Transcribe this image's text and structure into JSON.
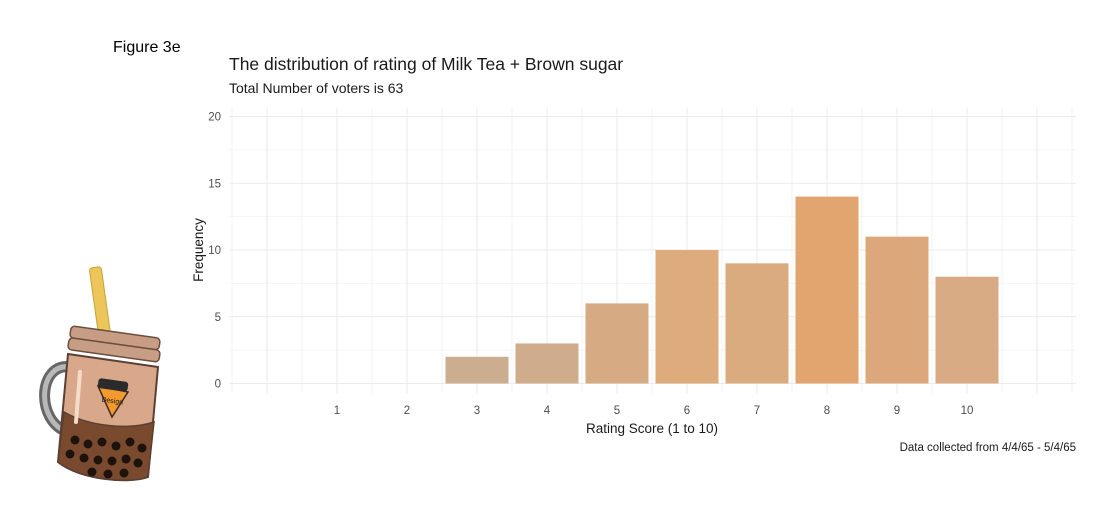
{
  "figure_label": "Figure 3e",
  "colors": {
    "grid": "#ebebeb",
    "axis_text": "#4d4d4d",
    "bar_low": "#ccad8f",
    "bar_high": "#e3a56f"
  },
  "mascot": {
    "icon": "bubble-tea-jar-icon",
    "badge_text": "Design"
  },
  "chart_data": {
    "type": "bar",
    "title": "The distribution of rating of Milk Tea + Brown sugar",
    "subtitle": "Total Number of voters is 63",
    "caption": "Data collected from 4/4/65 - 5/4/65",
    "xlabel": "Rating Score (1 to 10)",
    "ylabel": "Frequency",
    "categories": [
      "1",
      "2",
      "3",
      "4",
      "5",
      "6",
      "7",
      "8",
      "9",
      "10"
    ],
    "values": [
      0,
      0,
      2,
      3,
      6,
      10,
      9,
      14,
      11,
      8
    ],
    "bar_colors": [
      "#ccad8f",
      "#ccad8f",
      "#ccad8f",
      "#cfad8c",
      "#d6ab83",
      "#ddab7c",
      "#dbab80",
      "#e3a56f",
      "#dca87b",
      "#d8ab84"
    ],
    "ylim": [
      0,
      20
    ],
    "yticks": [
      0,
      5,
      10,
      15,
      20
    ],
    "grid": true,
    "legend": "none"
  }
}
